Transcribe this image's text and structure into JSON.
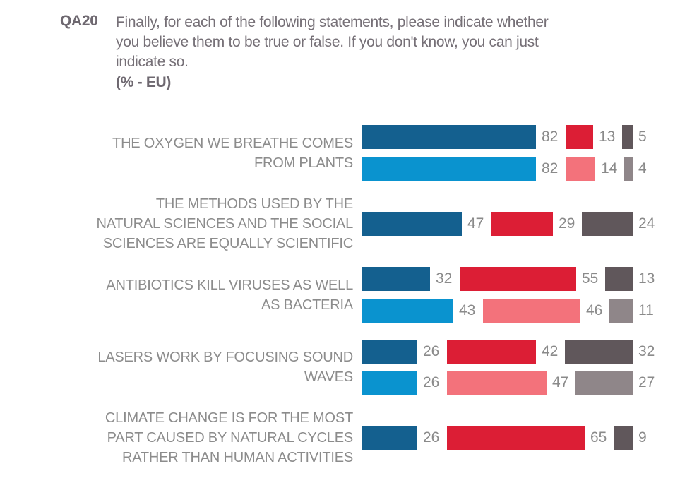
{
  "header": {
    "code": "QA20",
    "question_lines": [
      "Finally, for each of the following statements, please indicate whether",
      "you believe them to be true or false. If you don't know, you can just",
      "indicate so."
    ],
    "subtitle": "(% - EU)"
  },
  "chart_data": {
    "type": "bar",
    "orientation": "horizontal",
    "title": "QA20 Finally, for each of the following statements, please indicate whether you believe them to be true or false. If you don't know, you can just indicate so.",
    "unit": "percent",
    "scope_label": "(% - EU)",
    "value_range": [
      0,
      100
    ],
    "grid": false,
    "legend": "none",
    "colors": {
      "dark": {
        "blue": "#14608F",
        "red": "#DC1E35",
        "gray": "#60575B"
      },
      "light": {
        "blue": "#0A93CF",
        "red": "#F3727B",
        "gray": "#8F8689"
      }
    },
    "groups": [
      {
        "statement_lines": [
          "THE OXYGEN WE BREATHE COMES",
          "FROM PLANTS"
        ],
        "rows": [
          {
            "shade": "dark",
            "blue": 82,
            "red": 13,
            "gray": 5
          },
          {
            "shade": "light",
            "blue": 82,
            "red": 14,
            "gray": 4
          }
        ]
      },
      {
        "statement_lines": [
          "THE METHODS USED BY THE",
          "NATURAL SCIENCES AND THE SOCIAL",
          "SCIENCES ARE EQUALLY SCIENTIFIC"
        ],
        "rows": [
          {
            "shade": "dark",
            "blue": 47,
            "red": 29,
            "gray": 24
          }
        ]
      },
      {
        "statement_lines": [
          "ANTIBIOTICS KILL VIRUSES AS WELL",
          "AS BACTERIA"
        ],
        "rows": [
          {
            "shade": "dark",
            "blue": 32,
            "red": 55,
            "gray": 13
          },
          {
            "shade": "light",
            "blue": 43,
            "red": 46,
            "gray": 11
          }
        ]
      },
      {
        "statement_lines": [
          "LASERS WORK BY FOCUSING SOUND",
          "WAVES"
        ],
        "rows": [
          {
            "shade": "dark",
            "blue": 26,
            "red": 42,
            "gray": 32
          },
          {
            "shade": "light",
            "blue": 26,
            "red": 47,
            "gray": 27
          }
        ]
      },
      {
        "statement_lines": [
          "CLIMATE CHANGE IS FOR THE MOST",
          "PART CAUSED BY NATURAL CYCLES",
          "RATHER THAN HUMAN ACTIVITIES"
        ],
        "rows": [
          {
            "shade": "dark",
            "blue": 26,
            "red": 65,
            "gray": 9
          }
        ]
      }
    ]
  }
}
